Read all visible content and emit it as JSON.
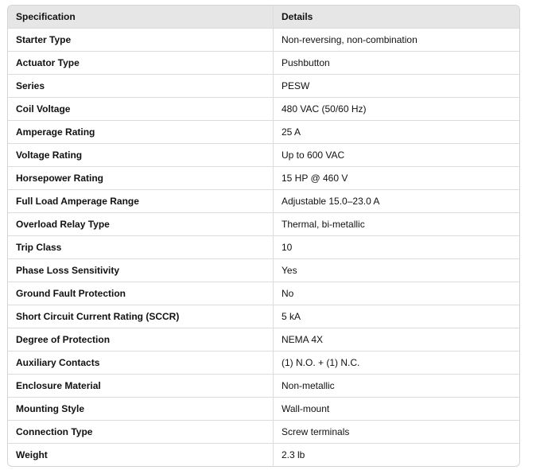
{
  "table": {
    "headers": [
      "Specification",
      "Details"
    ],
    "rows": [
      [
        "Starter Type",
        "Non-reversing, non-combination"
      ],
      [
        "Actuator Type",
        "Pushbutton"
      ],
      [
        "Series",
        "PESW"
      ],
      [
        "Coil Voltage",
        "480 VAC (50/60 Hz)"
      ],
      [
        "Amperage Rating",
        "25 A"
      ],
      [
        "Voltage Rating",
        "Up to 600 VAC"
      ],
      [
        "Horsepower Rating",
        "15 HP @ 460 V"
      ],
      [
        "Full Load Amperage Range",
        "Adjustable 15.0–23.0 A"
      ],
      [
        "Overload Relay Type",
        "Thermal, bi-metallic"
      ],
      [
        "Trip Class",
        "10"
      ],
      [
        "Phase Loss Sensitivity",
        "Yes"
      ],
      [
        "Ground Fault Protection",
        "No"
      ],
      [
        "Short Circuit Current Rating (SCCR)",
        "5 kA"
      ],
      [
        "Degree of Protection",
        "NEMA 4X"
      ],
      [
        "Auxiliary Contacts",
        "(1) N.O. + (1) N.C."
      ],
      [
        "Enclosure Material",
        "Non-metallic"
      ],
      [
        "Mounting Style",
        "Wall-mount"
      ],
      [
        "Connection Type",
        "Screw terminals"
      ],
      [
        "Weight",
        "2.3 lb"
      ]
    ]
  }
}
